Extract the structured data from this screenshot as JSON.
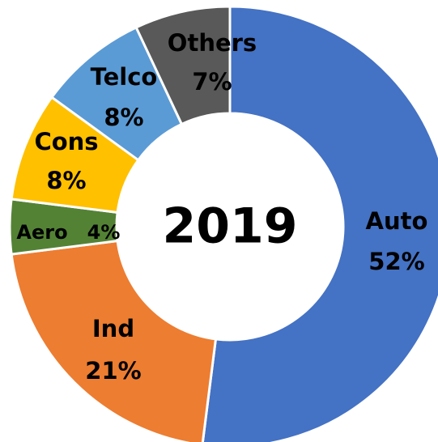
{
  "chart_data": {
    "type": "donut",
    "title": "2019",
    "categories": [
      "Auto",
      "Ind",
      "Aero",
      "Cons",
      "Telco",
      "Others"
    ],
    "values": [
      52,
      21,
      4,
      8,
      8,
      7
    ],
    "value_labels": [
      "52%",
      "21%",
      "4%",
      "8%",
      "8%",
      "7%"
    ],
    "colors": [
      "#4472c4",
      "#ed7d31",
      "#548235",
      "#ffc000",
      "#5b9bd5",
      "#595959"
    ]
  }
}
